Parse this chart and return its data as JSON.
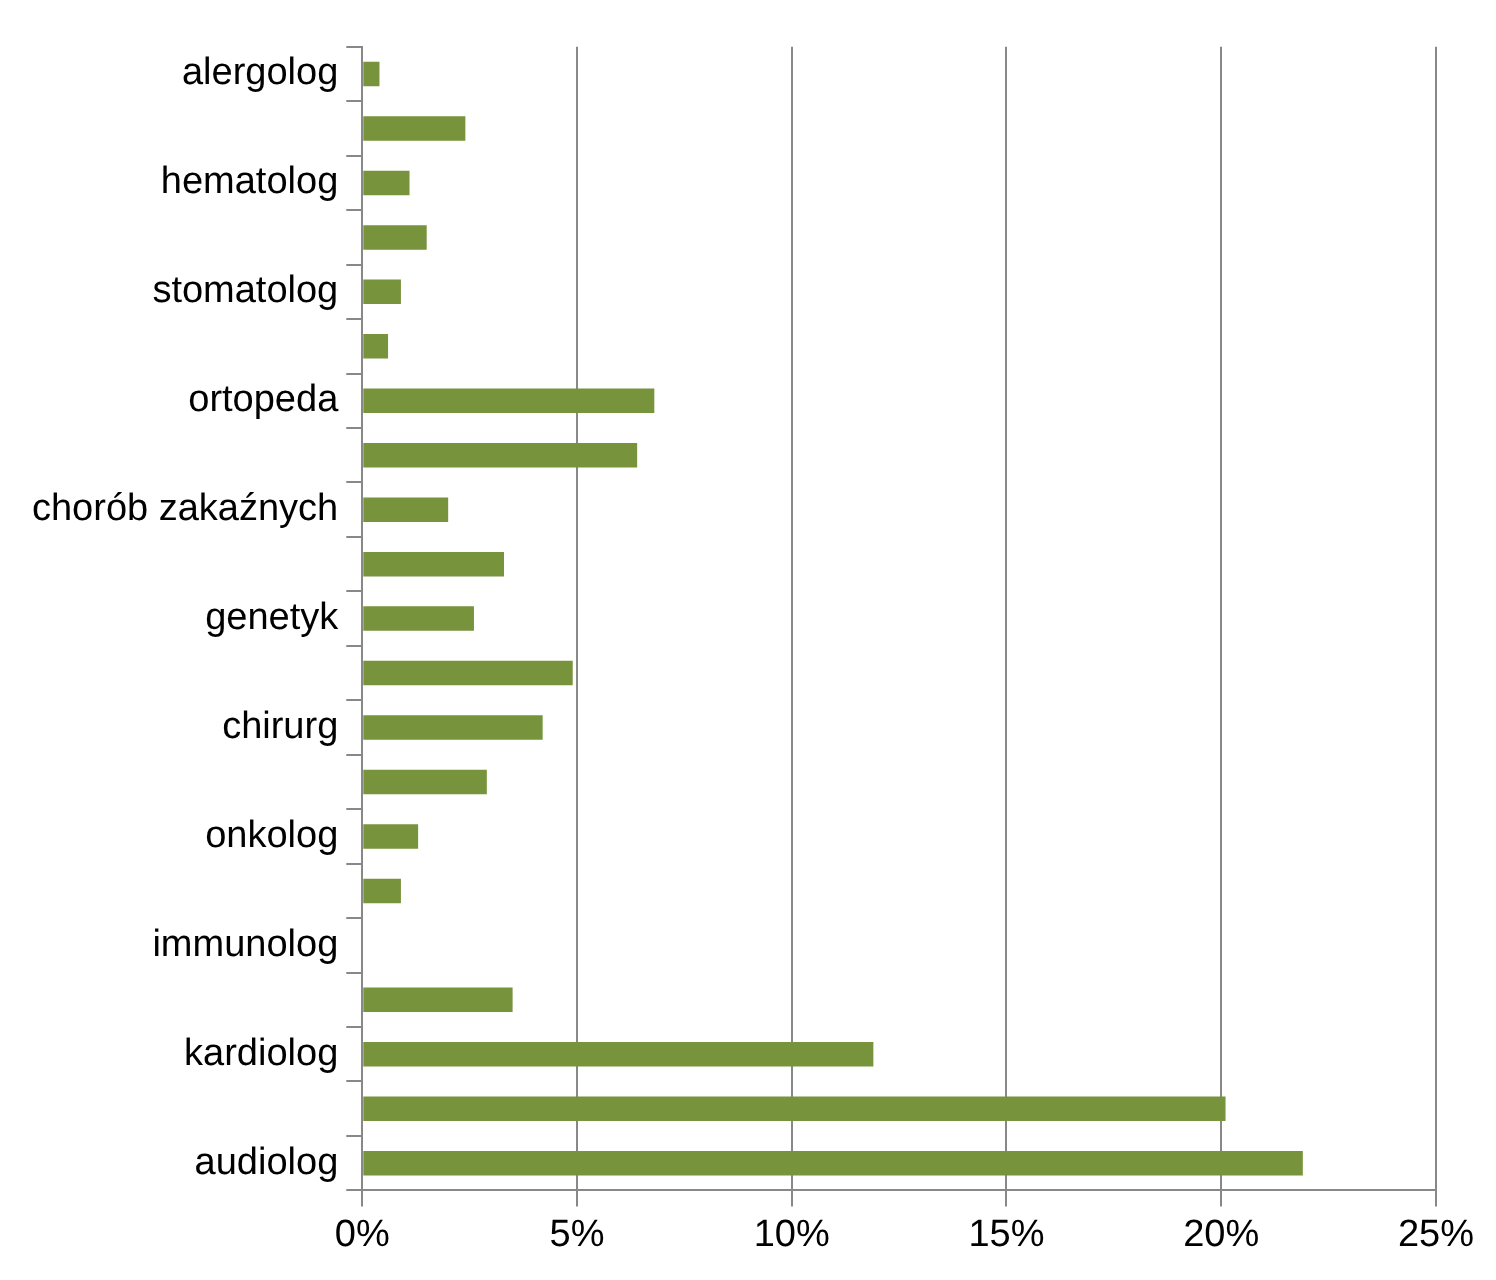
{
  "chart_data": {
    "type": "bar",
    "orientation": "horizontal",
    "categories": [
      "alergolog",
      null,
      "hematolog",
      null,
      "stomatolog",
      null,
      "ortopeda",
      null,
      "chorób zakaźnych",
      null,
      "genetyk",
      null,
      "chirurg",
      null,
      "onkolog",
      null,
      "immunolog",
      null,
      "kardiolog",
      null,
      "audiolog"
    ],
    "values": [
      0.4,
      2.4,
      1.1,
      1.5,
      0.9,
      0.6,
      6.8,
      6.4,
      2.0,
      3.3,
      2.6,
      4.9,
      4.2,
      2.9,
      1.3,
      0.9,
      0,
      3.5,
      11.9,
      20.1,
      21.9
    ],
    "color": "#77933c",
    "xlim": [
      0,
      25
    ],
    "xticks": [
      {
        "value": 0,
        "label": "0%"
      },
      {
        "value": 5,
        "label": "5%"
      },
      {
        "value": 10,
        "label": "10%"
      },
      {
        "value": 15,
        "label": "15%"
      },
      {
        "value": 20,
        "label": "20%"
      },
      {
        "value": 25,
        "label": "25%"
      }
    ],
    "grid": "x",
    "legend": false
  }
}
